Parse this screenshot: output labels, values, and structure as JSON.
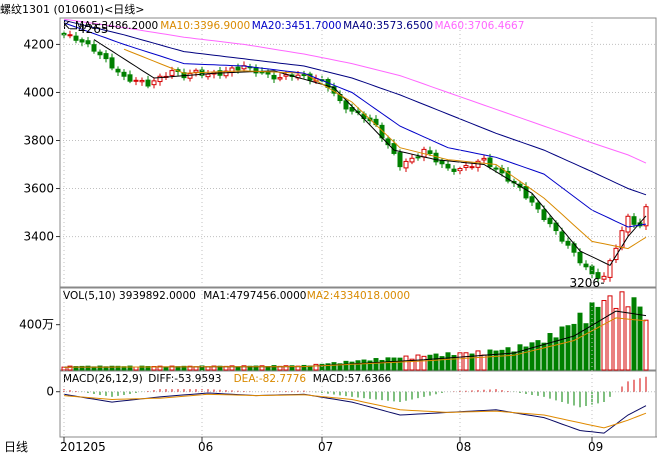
{
  "header": {
    "title": "螺纹1301 (010601)<日线>"
  },
  "colors": {
    "up": "#d40000",
    "down": "#008000",
    "ma5": "#000000",
    "ma10": "#d98a00",
    "ma20": "#0000c8",
    "ma40": "#000080",
    "ma60": "#ff66ff",
    "macd_diff": "#0a0a64",
    "macd_dea": "#e08a00",
    "grid": "#c0c0c0",
    "axis": "#333333"
  },
  "legends": {
    "price": {
      "prefix": "K",
      "items": [
        {
          "label": "MA5:3486.2000",
          "color": "#000000"
        },
        {
          "label": "MA10:3396.9000",
          "color": "#d98a00"
        },
        {
          "label": "MA20:3451.7000",
          "color": "#0000c8"
        },
        {
          "label": "MA40:3573.6500",
          "color": "#000080"
        },
        {
          "label": "MA60:3706.4667",
          "color": "#ff66ff"
        }
      ]
    },
    "volume": {
      "items": [
        {
          "label": "VOL(5,10) 3939892.0000",
          "color": "#000000"
        },
        {
          "label": "MA1:4797456.0000",
          "color": "#000000"
        },
        {
          "label": "MA2:4334018.0000",
          "color": "#d98a00"
        }
      ]
    },
    "macd": {
      "items": [
        {
          "label": "MACD(26,12,9)",
          "color": "#000000"
        },
        {
          "label": "DIFF:-53.9593",
          "color": "#000000"
        },
        {
          "label": "DEA:-82.7776",
          "color": "#d98a00"
        },
        {
          "label": "MACD:57.6366",
          "color": "#000000"
        }
      ]
    }
  },
  "chart_data": {
    "type": "candlestick",
    "title": "螺纹1301 (010601)<日线>",
    "x_axis_label": "日线",
    "x_ticks": [
      {
        "label": "201205",
        "index": 0
      },
      {
        "label": "06",
        "index": 23
      },
      {
        "label": "07",
        "index": 43
      },
      {
        "label": "08",
        "index": 66
      },
      {
        "label": "09",
        "index": 88
      }
    ],
    "price_ticks": [
      3400,
      3600,
      3800,
      4000,
      4200
    ],
    "price_range": [
      3190,
      4310
    ],
    "annotations": {
      "high": {
        "label": "4265",
        "value": 4265,
        "index": 1
      },
      "low": {
        "label": "3206",
        "value": 3206,
        "index": 90
      }
    },
    "close_keypoints": [
      [
        0,
        4240
      ],
      [
        2,
        4225
      ],
      [
        5,
        4180
      ],
      [
        8,
        4110
      ],
      [
        10,
        4060
      ],
      [
        12,
        4050
      ],
      [
        14,
        4035
      ],
      [
        16,
        4060
      ],
      [
        18,
        4090
      ],
      [
        20,
        4070
      ],
      [
        22,
        4085
      ],
      [
        24,
        4075
      ],
      [
        26,
        4080
      ],
      [
        28,
        4095
      ],
      [
        30,
        4110
      ],
      [
        32,
        4090
      ],
      [
        34,
        4070
      ],
      [
        36,
        4060
      ],
      [
        38,
        4075
      ],
      [
        40,
        4065
      ],
      [
        42,
        4055
      ],
      [
        44,
        4030
      ],
      [
        46,
        3960
      ],
      [
        48,
        3920
      ],
      [
        50,
        3900
      ],
      [
        52,
        3860
      ],
      [
        54,
        3780
      ],
      [
        56,
        3700
      ],
      [
        58,
        3720
      ],
      [
        60,
        3760
      ],
      [
        62,
        3720
      ],
      [
        64,
        3680
      ],
      [
        66,
        3680
      ],
      [
        68,
        3700
      ],
      [
        70,
        3720
      ],
      [
        72,
        3680
      ],
      [
        74,
        3640
      ],
      [
        76,
        3600
      ],
      [
        78,
        3540
      ],
      [
        80,
        3480
      ],
      [
        82,
        3420
      ],
      [
        84,
        3360
      ],
      [
        86,
        3300
      ],
      [
        88,
        3240
      ],
      [
        90,
        3230
      ],
      [
        92,
        3360
      ],
      [
        94,
        3480
      ],
      [
        96,
        3440
      ],
      [
        97,
        3520
      ]
    ],
    "ma_keypoints": {
      "MA5": [
        [
          5,
          4220
        ],
        [
          15,
          4060
        ],
        [
          25,
          4080
        ],
        [
          35,
          4090
        ],
        [
          45,
          4020
        ],
        [
          55,
          3760
        ],
        [
          62,
          3720
        ],
        [
          70,
          3700
        ],
        [
          78,
          3580
        ],
        [
          86,
          3340
        ],
        [
          91,
          3280
        ],
        [
          94,
          3400
        ],
        [
          97,
          3486
        ]
      ],
      "MA10": [
        [
          10,
          4180
        ],
        [
          20,
          4080
        ],
        [
          30,
          4090
        ],
        [
          40,
          4080
        ],
        [
          48,
          3960
        ],
        [
          56,
          3770
        ],
        [
          64,
          3720
        ],
        [
          72,
          3700
        ],
        [
          80,
          3560
        ],
        [
          88,
          3380
        ],
        [
          94,
          3350
        ],
        [
          97,
          3397
        ]
      ],
      "MA20": [
        [
          0,
          4290
        ],
        [
          10,
          4200
        ],
        [
          20,
          4120
        ],
        [
          30,
          4110
        ],
        [
          40,
          4080
        ],
        [
          48,
          4000
        ],
        [
          56,
          3860
        ],
        [
          64,
          3770
        ],
        [
          72,
          3730
        ],
        [
          80,
          3660
        ],
        [
          88,
          3510
        ],
        [
          94,
          3440
        ],
        [
          97,
          3452
        ]
      ],
      "MA40": [
        [
          0,
          4300
        ],
        [
          10,
          4240
        ],
        [
          20,
          4170
        ],
        [
          30,
          4140
        ],
        [
          40,
          4110
        ],
        [
          48,
          4060
        ],
        [
          56,
          3990
        ],
        [
          64,
          3910
        ],
        [
          72,
          3830
        ],
        [
          80,
          3760
        ],
        [
          88,
          3670
        ],
        [
          94,
          3600
        ],
        [
          97,
          3574
        ]
      ],
      "MA60": [
        [
          0,
          4305
        ],
        [
          10,
          4270
        ],
        [
          20,
          4230
        ],
        [
          30,
          4200
        ],
        [
          40,
          4160
        ],
        [
          48,
          4120
        ],
        [
          56,
          4070
        ],
        [
          64,
          4000
        ],
        [
          72,
          3930
        ],
        [
          80,
          3860
        ],
        [
          88,
          3790
        ],
        [
          94,
          3740
        ],
        [
          97,
          3706
        ]
      ]
    },
    "volume_axis_label": "400万",
    "volume_range": [
      0,
      6000000
    ],
    "volume_keypoints": [
      [
        0,
        300000
      ],
      [
        20,
        300000
      ],
      [
        40,
        350000
      ],
      [
        50,
        800000
      ],
      [
        60,
        1200000
      ],
      [
        70,
        1500000
      ],
      [
        75,
        1800000
      ],
      [
        80,
        2500000
      ],
      [
        85,
        4000000
      ],
      [
        88,
        5200000
      ],
      [
        90,
        5800000
      ],
      [
        93,
        6000000
      ],
      [
        95,
        5800000
      ],
      [
        97,
        4500000
      ]
    ],
    "volume_ma_keypoints": {
      "MA1": [
        [
          0,
          250000
        ],
        [
          40,
          300000
        ],
        [
          60,
          900000
        ],
        [
          75,
          1500000
        ],
        [
          85,
          3000000
        ],
        [
          92,
          5200000
        ],
        [
          97,
          4797456
        ]
      ],
      "MA2": [
        [
          0,
          250000
        ],
        [
          40,
          300000
        ],
        [
          60,
          800000
        ],
        [
          75,
          1300000
        ],
        [
          85,
          2600000
        ],
        [
          92,
          4600000
        ],
        [
          97,
          4334018
        ]
      ]
    },
    "macd_axis_label": "0",
    "macd_range": [
      -175,
      80
    ],
    "macd_diff_keypoints": [
      [
        0,
        -10
      ],
      [
        8,
        -40
      ],
      [
        16,
        -20
      ],
      [
        24,
        -5
      ],
      [
        32,
        -15
      ],
      [
        40,
        -10
      ],
      [
        48,
        -40
      ],
      [
        56,
        -90
      ],
      [
        64,
        -80
      ],
      [
        72,
        -70
      ],
      [
        80,
        -100
      ],
      [
        86,
        -150
      ],
      [
        90,
        -160
      ],
      [
        94,
        -90
      ],
      [
        97,
        -54
      ]
    ],
    "macd_dea_keypoints": [
      [
        0,
        -15
      ],
      [
        8,
        -30
      ],
      [
        16,
        -25
      ],
      [
        24,
        -10
      ],
      [
        32,
        -15
      ],
      [
        40,
        -12
      ],
      [
        48,
        -30
      ],
      [
        56,
        -70
      ],
      [
        64,
        -80
      ],
      [
        72,
        -75
      ],
      [
        80,
        -90
      ],
      [
        86,
        -120
      ],
      [
        90,
        -140
      ],
      [
        94,
        -110
      ],
      [
        97,
        -83
      ]
    ]
  }
}
